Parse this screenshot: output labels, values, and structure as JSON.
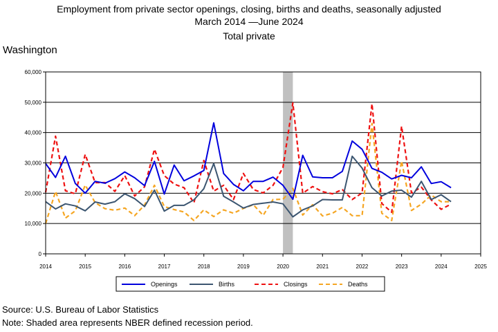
{
  "title_line1": "Employment from private sector openings, closing, births and deaths, seasonally adjusted",
  "title_line2": "March 2014 —June 2024",
  "title_line3": "Total private",
  "state": "Washington",
  "footnote_source": "Source: U.S. Bureau of Labor Statistics",
  "footnote_note": "Note: Shaded area represents NBER defined recession period.",
  "colors": {
    "openings": "#0000dd",
    "births": "#3b5570",
    "closings": "#ee1111",
    "deaths": "#f5a623",
    "recession": "#c0c0c0"
  },
  "chart_data": {
    "type": "line",
    "x_unit": "year",
    "xlim": [
      2014,
      2025
    ],
    "ylim": [
      0,
      60000
    ],
    "yticks": [
      0,
      10000,
      20000,
      30000,
      40000,
      50000,
      60000
    ],
    "ytick_labels": [
      "0",
      "10,000",
      "20,000",
      "30,000",
      "40,000",
      "50,000",
      "60,000"
    ],
    "xticks": [
      2014,
      2015,
      2016,
      2017,
      2018,
      2019,
      2020,
      2021,
      2022,
      2023,
      2024,
      2025
    ],
    "xtick_labels": [
      "2014",
      "2015",
      "2016",
      "2017",
      "2018",
      "2019",
      "2020",
      "2021",
      "2022",
      "2023",
      "2024",
      "2025"
    ],
    "grid": "horizontal",
    "legend_position": "bottom",
    "recession_periods": [
      [
        2020.0,
        2020.25
      ]
    ],
    "x": [
      2014.0,
      2014.25,
      2014.5,
      2014.75,
      2015.0,
      2015.25,
      2015.5,
      2015.75,
      2016.0,
      2016.25,
      2016.5,
      2016.75,
      2017.0,
      2017.25,
      2017.5,
      2017.75,
      2018.0,
      2018.25,
      2018.5,
      2018.75,
      2019.0,
      2019.25,
      2019.5,
      2019.75,
      2020.0,
      2020.25,
      2020.5,
      2020.75,
      2021.0,
      2021.25,
      2021.5,
      2021.75,
      2022.0,
      2022.25,
      2022.5,
      2022.75,
      2023.0,
      2023.25,
      2023.5,
      2023.75,
      2024.0,
      2024.25
    ],
    "series": [
      {
        "name": "Openings",
        "style": "solid",
        "color_key": "openings",
        "values": [
          29800,
          25200,
          32200,
          23200,
          20000,
          23900,
          23300,
          24800,
          27000,
          25100,
          22500,
          30500,
          19700,
          29300,
          24100,
          25700,
          27500,
          43200,
          26500,
          22900,
          20800,
          23900,
          23900,
          25300,
          22600,
          18000,
          32500,
          25400,
          25100,
          25100,
          27200,
          37200,
          34500,
          28200,
          26900,
          24700,
          25900,
          25100,
          28700,
          23200,
          23800,
          21800
        ]
      },
      {
        "name": "Births",
        "style": "solid",
        "color_key": "births",
        "values": [
          17200,
          14800,
          16500,
          15800,
          14200,
          17100,
          16400,
          17200,
          19800,
          18200,
          15600,
          21000,
          14100,
          16000,
          16000,
          17800,
          21500,
          29800,
          19000,
          17100,
          15100,
          16300,
          16700,
          17100,
          16500,
          12200,
          14500,
          15800,
          17900,
          17800,
          17800,
          32200,
          28300,
          21800,
          19100,
          20700,
          21000,
          18700,
          23900,
          17900,
          19500,
          17200
        ]
      },
      {
        "name": "Closings",
        "style": "dashed",
        "color_key": "closings",
        "values": [
          20300,
          38800,
          20800,
          19800,
          32800,
          23500,
          23500,
          20600,
          25800,
          19100,
          22100,
          34500,
          25800,
          23000,
          21800,
          16800,
          30800,
          20700,
          22600,
          17900,
          26500,
          21200,
          20100,
          22600,
          28500,
          49800,
          20000,
          22200,
          20500,
          19800,
          21200,
          17900,
          20100,
          49500,
          16600,
          13700,
          42100,
          20100,
          22000,
          17800,
          14700,
          16400
        ]
      },
      {
        "name": "Deaths",
        "style": "dashed",
        "color_key": "deaths",
        "values": [
          10000,
          20600,
          11800,
          14200,
          22700,
          16900,
          14900,
          14400,
          15100,
          12600,
          16100,
          22600,
          15600,
          14600,
          13800,
          11000,
          14500,
          12300,
          14500,
          13400,
          15000,
          16200,
          12700,
          17900,
          18000,
          21600,
          12800,
          16200,
          12500,
          13400,
          15300,
          12600,
          12600,
          43000,
          13400,
          11000,
          30600,
          14300,
          16400,
          19400,
          17200,
          17200
        ]
      }
    ]
  }
}
